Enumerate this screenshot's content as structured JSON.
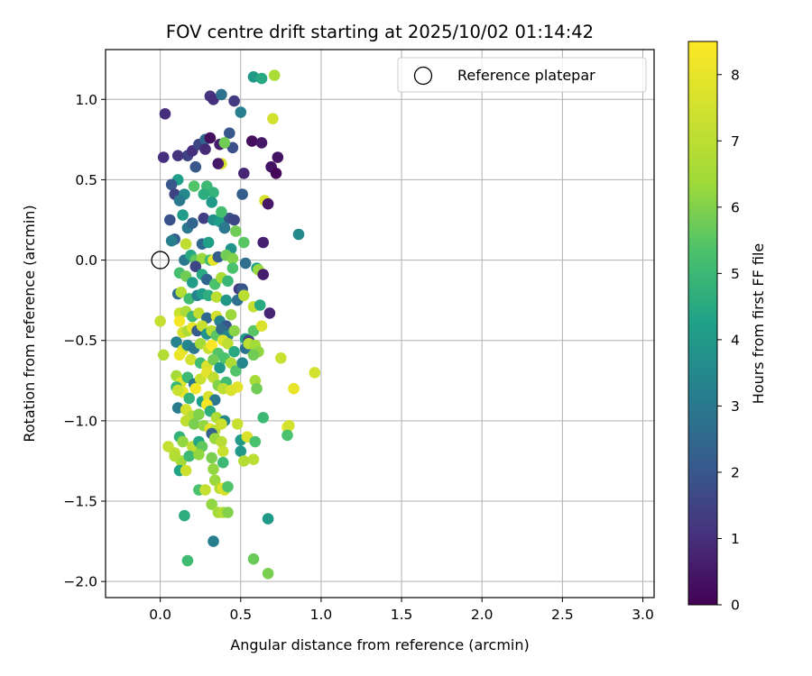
{
  "chart_data": {
    "type": "scatter",
    "title": "FOV centre drift starting at 2025/10/02 01:14:42",
    "xlabel": "Angular distance from reference (arcmin)",
    "ylabel": "Rotation from reference (arcmin)",
    "xlim": [
      -0.34,
      3.07
    ],
    "ylim": [
      -2.1,
      1.31
    ],
    "x_ticks": [
      0.0,
      0.5,
      1.0,
      1.5,
      2.0,
      2.5,
      3.0
    ],
    "x_tick_labels": [
      "0.0",
      "0.5",
      "1.0",
      "1.5",
      "2.0",
      "2.5",
      "3.0"
    ],
    "y_ticks": [
      1.0,
      0.5,
      0.0,
      -0.5,
      -1.0,
      -1.5,
      -2.0
    ],
    "y_tick_labels": [
      "1.0",
      "0.5",
      "0.0",
      "−0.5",
      "−1.0",
      "−1.5",
      "−2.0"
    ],
    "grid": true,
    "legend": {
      "position": "top-right",
      "label": "Reference platepar"
    },
    "reference_point": {
      "x": 0.0,
      "y": 0.0
    },
    "colorbar": {
      "label": "Hours from first FF file",
      "range": [
        0,
        8.5
      ],
      "ticks": [
        0,
        1,
        2,
        3,
        4,
        5,
        6,
        7,
        8
      ],
      "tick_labels": [
        "0",
        "1",
        "2",
        "3",
        "4",
        "5",
        "6",
        "7",
        "8"
      ],
      "colormap": "viridis"
    },
    "points": [
      [
        0.58,
        1.14,
        4.0
      ],
      [
        0.63,
        1.13,
        4.5
      ],
      [
        0.71,
        1.15,
        6.6
      ],
      [
        0.31,
        1.02,
        1.2
      ],
      [
        0.33,
        1.0,
        1.0
      ],
      [
        0.38,
        1.03,
        2.8
      ],
      [
        0.46,
        0.99,
        1.3
      ],
      [
        0.5,
        0.92,
        3.2
      ],
      [
        0.03,
        0.91,
        1.0
      ],
      [
        0.7,
        0.88,
        7.5
      ],
      [
        0.17,
        0.65,
        1.5
      ],
      [
        0.2,
        0.68,
        1.0
      ],
      [
        0.24,
        0.72,
        1.6
      ],
      [
        0.28,
        0.75,
        2.4
      ],
      [
        0.31,
        0.76,
        0.3
      ],
      [
        0.37,
        0.72,
        0.6
      ],
      [
        0.43,
        0.79,
        2.0
      ],
      [
        0.45,
        0.7,
        1.8
      ],
      [
        0.4,
        0.73,
        5.8
      ],
      [
        0.38,
        0.6,
        7.6
      ],
      [
        0.36,
        0.6,
        0.5
      ],
      [
        0.28,
        0.69,
        0.9
      ],
      [
        0.57,
        0.74,
        0.3
      ],
      [
        0.63,
        0.73,
        0.5
      ],
      [
        0.69,
        0.58,
        0.4
      ],
      [
        0.73,
        0.64,
        0.4
      ],
      [
        0.72,
        0.54,
        0.1
      ],
      [
        0.52,
        0.54,
        0.8
      ],
      [
        0.22,
        0.58,
        2.0
      ],
      [
        0.02,
        0.64,
        1.0
      ],
      [
        0.11,
        0.65,
        1.2
      ],
      [
        0.11,
        0.5,
        4.2
      ],
      [
        0.07,
        0.47,
        2.0
      ],
      [
        0.09,
        0.41,
        1.5
      ],
      [
        0.15,
        0.41,
        3.5
      ],
      [
        0.21,
        0.46,
        5.4
      ],
      [
        0.29,
        0.46,
        5.0
      ],
      [
        0.33,
        0.42,
        4.8
      ],
      [
        0.32,
        0.36,
        4.0
      ],
      [
        0.27,
        0.41,
        4.6
      ],
      [
        0.12,
        0.37,
        3.0
      ],
      [
        0.51,
        0.41,
        2.2
      ],
      [
        0.65,
        0.37,
        7.7
      ],
      [
        0.67,
        0.35,
        0.5
      ],
      [
        0.06,
        0.25,
        1.9
      ],
      [
        0.14,
        0.28,
        4.1
      ],
      [
        0.17,
        0.2,
        3.0
      ],
      [
        0.2,
        0.23,
        2.4
      ],
      [
        0.27,
        0.26,
        1.4
      ],
      [
        0.33,
        0.25,
        3.7
      ],
      [
        0.37,
        0.24,
        4.2
      ],
      [
        0.4,
        0.2,
        1.8
      ],
      [
        0.43,
        0.26,
        1.9
      ],
      [
        0.46,
        0.25,
        1.6
      ],
      [
        0.38,
        0.3,
        5.2
      ],
      [
        0.47,
        0.18,
        5.8
      ],
      [
        0.09,
        0.13,
        2.2
      ],
      [
        0.16,
        0.1,
        7.1
      ],
      [
        0.26,
        0.1,
        2.5
      ],
      [
        0.3,
        0.11,
        4.2
      ],
      [
        0.44,
        0.07,
        3.8
      ],
      [
        0.52,
        0.11,
        5.5
      ],
      [
        0.64,
        0.11,
        0.7
      ],
      [
        0.86,
        0.16,
        3.5
      ],
      [
        0.4,
        0.2,
        3.0
      ],
      [
        0.07,
        0.12,
        3.2
      ],
      [
        0.15,
        0.0,
        3.0
      ],
      [
        0.19,
        0.03,
        4.5
      ],
      [
        0.22,
        0.0,
        5.6
      ],
      [
        0.26,
        0.01,
        6.3
      ],
      [
        0.31,
        0.0,
        5.1
      ],
      [
        0.33,
        0.0,
        8.0
      ],
      [
        0.36,
        0.02,
        2.2
      ],
      [
        0.41,
        0.03,
        5.8
      ],
      [
        0.45,
        0.01,
        6.0
      ],
      [
        0.45,
        -0.05,
        5.3
      ],
      [
        0.53,
        -0.02,
        2.7
      ],
      [
        0.6,
        -0.05,
        4.2
      ],
      [
        0.61,
        -0.06,
        6.3
      ],
      [
        0.64,
        -0.09,
        0.6
      ],
      [
        0.22,
        -0.04,
        1.6
      ],
      [
        0.12,
        -0.08,
        5.2
      ],
      [
        0.16,
        -0.1,
        5.8
      ],
      [
        0.2,
        -0.14,
        4.1
      ],
      [
        0.26,
        -0.09,
        4.5
      ],
      [
        0.29,
        -0.12,
        2.4
      ],
      [
        0.34,
        -0.15,
        5.3
      ],
      [
        0.38,
        -0.11,
        6.6
      ],
      [
        0.42,
        -0.13,
        4.9
      ],
      [
        0.49,
        -0.18,
        1.3
      ],
      [
        0.51,
        -0.18,
        2.0
      ],
      [
        0.11,
        -0.21,
        2.6
      ],
      [
        0.13,
        -0.2,
        6.8
      ],
      [
        0.18,
        -0.24,
        5.1
      ],
      [
        0.23,
        -0.22,
        3.3
      ],
      [
        0.26,
        -0.21,
        4.1
      ],
      [
        0.3,
        -0.22,
        4.6
      ],
      [
        0.35,
        -0.23,
        7.0
      ],
      [
        0.41,
        -0.25,
        3.9
      ],
      [
        0.48,
        -0.25,
        2.7
      ],
      [
        0.52,
        -0.22,
        7.0
      ],
      [
        0.58,
        -0.29,
        7.2
      ],
      [
        0.62,
        -0.28,
        4.5
      ],
      [
        0.68,
        -0.33,
        0.8
      ],
      [
        0.12,
        -0.33,
        7.3
      ],
      [
        0.16,
        -0.32,
        6.6
      ],
      [
        0.2,
        -0.35,
        5.0
      ],
      [
        0.24,
        -0.33,
        7.1
      ],
      [
        0.29,
        -0.36,
        2.5
      ],
      [
        0.35,
        -0.35,
        7.5
      ],
      [
        0.37,
        -0.38,
        3.3
      ],
      [
        0.41,
        -0.41,
        2.0
      ],
      [
        0.44,
        -0.34,
        6.3
      ],
      [
        0.12,
        -0.38,
        8.3
      ],
      [
        0.14,
        -0.45,
        7.6
      ],
      [
        0.17,
        -0.44,
        6.7
      ],
      [
        0.2,
        -0.42,
        8.0
      ],
      [
        0.23,
        -0.44,
        2.1
      ],
      [
        0.26,
        -0.41,
        7.3
      ],
      [
        0.29,
        -0.46,
        3.8
      ],
      [
        0.32,
        -0.44,
        6.9
      ],
      [
        0.35,
        -0.47,
        5.5
      ],
      [
        0.38,
        -0.43,
        2.6
      ],
      [
        0.42,
        -0.47,
        3.4
      ],
      [
        0.46,
        -0.44,
        6.1
      ],
      [
        0.53,
        -0.49,
        4.2
      ],
      [
        0.55,
        -0.5,
        1.4
      ],
      [
        0.58,
        -0.44,
        5.5
      ],
      [
        0.63,
        -0.41,
        7.7
      ],
      [
        0.0,
        -0.38,
        7.2
      ],
      [
        0.1,
        -0.51,
        3.3
      ],
      [
        0.14,
        -0.56,
        7.8
      ],
      [
        0.17,
        -0.53,
        3.4
      ],
      [
        0.21,
        -0.55,
        3.0
      ],
      [
        0.25,
        -0.52,
        6.5
      ],
      [
        0.3,
        -0.55,
        7.3
      ],
      [
        0.32,
        -0.53,
        8.4
      ],
      [
        0.36,
        -0.58,
        5.4
      ],
      [
        0.39,
        -0.5,
        7.8
      ],
      [
        0.42,
        -0.52,
        7.1
      ],
      [
        0.46,
        -0.57,
        4.5
      ],
      [
        0.53,
        -0.55,
        2.8
      ],
      [
        0.55,
        -0.52,
        7.0
      ],
      [
        0.59,
        -0.53,
        6.5
      ],
      [
        0.61,
        -0.57,
        6.2
      ],
      [
        0.02,
        -0.59,
        6.8
      ],
      [
        0.12,
        -0.59,
        8.1
      ],
      [
        0.19,
        -0.62,
        7.5
      ],
      [
        0.25,
        -0.64,
        5.1
      ],
      [
        0.29,
        -0.66,
        7.7
      ],
      [
        0.33,
        -0.62,
        5.8
      ],
      [
        0.37,
        -0.67,
        4.0
      ],
      [
        0.4,
        -0.61,
        5.3
      ],
      [
        0.44,
        -0.64,
        6.7
      ],
      [
        0.47,
        -0.69,
        5.4
      ],
      [
        0.51,
        -0.64,
        3.4
      ],
      [
        0.58,
        -0.59,
        5.8
      ],
      [
        0.75,
        -0.61,
        7.3
      ],
      [
        0.1,
        -0.72,
        6.5
      ],
      [
        0.13,
        -0.76,
        7.8
      ],
      [
        0.17,
        -0.73,
        5.0
      ],
      [
        0.21,
        -0.77,
        3.0
      ],
      [
        0.25,
        -0.74,
        7.3
      ],
      [
        0.29,
        -0.7,
        7.9
      ],
      [
        0.33,
        -0.73,
        7.1
      ],
      [
        0.36,
        -0.78,
        6.0
      ],
      [
        0.41,
        -0.76,
        5.1
      ],
      [
        0.48,
        -0.79,
        7.9
      ],
      [
        0.59,
        -0.75,
        6.5
      ],
      [
        0.96,
        -0.7,
        7.5
      ],
      [
        0.1,
        -0.79,
        4.9
      ],
      [
        0.14,
        -0.82,
        8.0
      ],
      [
        0.18,
        -0.86,
        4.8
      ],
      [
        0.22,
        -0.8,
        8.3
      ],
      [
        0.26,
        -0.88,
        4.2
      ],
      [
        0.3,
        -0.85,
        7.6
      ],
      [
        0.34,
        -0.87,
        3.0
      ],
      [
        0.39,
        -0.8,
        7.0
      ],
      [
        0.44,
        -0.81,
        7.7
      ],
      [
        0.6,
        -0.8,
        5.8
      ],
      [
        0.83,
        -0.8,
        8.0
      ],
      [
        0.11,
        -0.81,
        7.3
      ],
      [
        0.11,
        -0.92,
        3.1
      ],
      [
        0.16,
        -0.93,
        7.5
      ],
      [
        0.2,
        -0.97,
        6.8
      ],
      [
        0.24,
        -0.96,
        6.0
      ],
      [
        0.29,
        -0.9,
        8.4
      ],
      [
        0.31,
        -0.94,
        4.6
      ],
      [
        0.35,
        -0.98,
        6.7
      ],
      [
        0.4,
        -1.0,
        3.5
      ],
      [
        0.48,
        -1.02,
        7.3
      ],
      [
        0.16,
        -1.0,
        7.1
      ],
      [
        0.21,
        -1.02,
        5.9
      ],
      [
        0.27,
        -1.03,
        6.2
      ],
      [
        0.31,
        -1.05,
        7.9
      ],
      [
        0.34,
        -1.06,
        7.0
      ],
      [
        0.38,
        -1.02,
        7.4
      ],
      [
        0.64,
        -0.98,
        5.0
      ],
      [
        0.79,
        -1.04,
        8.0
      ],
      [
        0.8,
        -1.03,
        7.5
      ],
      [
        0.12,
        -1.1,
        4.8
      ],
      [
        0.14,
        -1.13,
        6.2
      ],
      [
        0.2,
        -1.16,
        7.1
      ],
      [
        0.24,
        -1.13,
        4.4
      ],
      [
        0.26,
        -1.16,
        5.6
      ],
      [
        0.32,
        -1.08,
        2.3
      ],
      [
        0.34,
        -1.11,
        6.3
      ],
      [
        0.38,
        -1.13,
        6.9
      ],
      [
        0.39,
        -1.19,
        7.3
      ],
      [
        0.5,
        -1.12,
        4.1
      ],
      [
        0.54,
        -1.1,
        7.7
      ],
      [
        0.59,
        -1.13,
        5.3
      ],
      [
        0.79,
        -1.09,
        5.3
      ],
      [
        0.05,
        -1.16,
        7.2
      ],
      [
        0.09,
        -1.2,
        7.1
      ],
      [
        0.13,
        -1.25,
        6.4
      ],
      [
        0.18,
        -1.22,
        5.0
      ],
      [
        0.24,
        -1.21,
        6.2
      ],
      [
        0.32,
        -1.23,
        5.9
      ],
      [
        0.39,
        -1.26,
        5.0
      ],
      [
        0.5,
        -1.19,
        4.0
      ],
      [
        0.52,
        -1.25,
        6.8
      ],
      [
        0.58,
        -1.24,
        7.0
      ],
      [
        0.09,
        -1.22,
        6.8
      ],
      [
        0.12,
        -1.31,
        4.3
      ],
      [
        0.16,
        -1.31,
        7.4
      ],
      [
        0.33,
        -1.3,
        6.2
      ],
      [
        0.24,
        -1.43,
        5.3
      ],
      [
        0.28,
        -1.43,
        7.2
      ],
      [
        0.34,
        -1.37,
        6.3
      ],
      [
        0.37,
        -1.42,
        6.8
      ],
      [
        0.39,
        -1.42,
        8.0
      ],
      [
        0.4,
        -1.43,
        7.6
      ],
      [
        0.42,
        -1.41,
        5.4
      ],
      [
        0.15,
        -1.59,
        4.6
      ],
      [
        0.32,
        -1.52,
        6.2
      ],
      [
        0.36,
        -1.57,
        6.5
      ],
      [
        0.39,
        -1.57,
        6.8
      ],
      [
        0.42,
        -1.57,
        6.0
      ],
      [
        0.67,
        -1.61,
        4.0
      ],
      [
        0.33,
        -1.75,
        3.2
      ],
      [
        0.17,
        -1.87,
        5.1
      ],
      [
        0.58,
        -1.86,
        5.7
      ],
      [
        0.67,
        -1.95,
        5.9
      ]
    ]
  }
}
